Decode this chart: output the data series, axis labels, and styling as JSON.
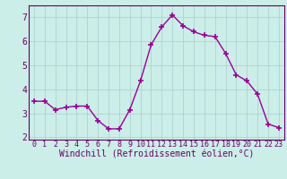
{
  "x": [
    0,
    1,
    2,
    3,
    4,
    5,
    6,
    7,
    8,
    9,
    10,
    11,
    12,
    13,
    14,
    15,
    16,
    17,
    18,
    19,
    20,
    21,
    22,
    23
  ],
  "y": [
    3.5,
    3.5,
    3.15,
    3.25,
    3.3,
    3.3,
    2.7,
    2.35,
    2.35,
    3.15,
    4.35,
    5.85,
    6.6,
    7.1,
    6.65,
    6.4,
    6.25,
    6.2,
    5.5,
    4.6,
    4.35,
    3.8,
    2.55,
    2.4
  ],
  "line_color": "#990099",
  "marker": "+",
  "marker_size": 4,
  "marker_lw": 1.2,
  "line_width": 1.0,
  "bg_color": "#cceee8",
  "grid_color": "#aacccc",
  "xlabel": "Windchill (Refroidissement éolien,°C)",
  "xlim": [
    -0.5,
    23.5
  ],
  "ylim": [
    1.9,
    7.5
  ],
  "yticks": [
    2,
    3,
    4,
    5,
    6,
    7
  ],
  "xticks": [
    0,
    1,
    2,
    3,
    4,
    5,
    6,
    7,
    8,
    9,
    10,
    11,
    12,
    13,
    14,
    15,
    16,
    17,
    18,
    19,
    20,
    21,
    22,
    23
  ],
  "tick_fontsize": 6.0,
  "xlabel_fontsize": 7.0,
  "tick_color": "#660066",
  "spine_color": "#660066"
}
